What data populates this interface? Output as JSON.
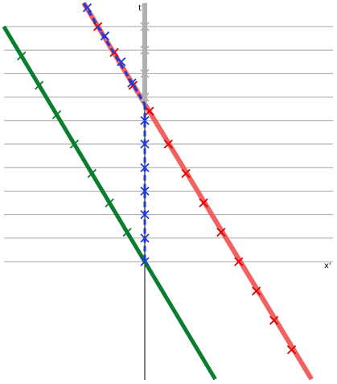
{
  "diagram": {
    "type": "spacetime-diagram",
    "axes": {
      "time_label": "t'",
      "space_label": "x'"
    },
    "units_per_grid": 1,
    "x_range": [
      -6,
      7.5
    ],
    "t_range": [
      -5,
      11
    ],
    "simultaneity_lines": [
      0,
      1,
      2,
      3,
      4,
      5,
      6,
      7,
      8,
      9,
      10
    ],
    "colors": {
      "grid": "#a6a6a6",
      "axis": "#000000",
      "green": "#0a7d2e",
      "red": "#f26060",
      "red_ticks": "#e00000",
      "blue": "#1a3bd6",
      "gray_worldline": "#b0b0b0"
    },
    "worldlines": [
      {
        "id": "green",
        "points": [
          [
            -6,
            10
          ],
          [
            3,
            -5
          ]
        ],
        "ticks": [
          [
            -5.25,
            8.75
          ],
          [
            -4.5,
            7.5
          ],
          [
            -3.75,
            6.25
          ],
          [
            -3,
            5
          ],
          [
            -2.25,
            3.75
          ],
          [
            -1.5,
            2.5
          ],
          [
            -0.75,
            1.25
          ]
        ]
      },
      {
        "id": "red",
        "points": [
          [
            -2.6,
            11
          ],
          [
            7.1,
            -5
          ]
        ],
        "ticks": [
          [
            -2,
            10
          ],
          [
            -1.3,
            8.9
          ],
          [
            -0.5,
            7.5
          ],
          [
            0.2,
            6.4
          ],
          [
            1,
            5
          ],
          [
            1.75,
            3.75
          ],
          [
            2.5,
            2.5
          ],
          [
            3.25,
            1.25
          ],
          [
            4,
            0
          ],
          [
            4.75,
            -1.25
          ],
          [
            5.5,
            -2.5
          ],
          [
            6.25,
            -3.75
          ]
        ]
      },
      {
        "id": "gray",
        "points": [
          [
            0,
            11
          ],
          [
            0,
            6.7
          ]
        ],
        "ticks": [
          [
            0,
            10
          ],
          [
            0,
            9
          ],
          [
            0,
            8
          ],
          [
            0,
            7
          ]
        ]
      },
      {
        "id": "blue-outbound",
        "points": [
          [
            -2.6,
            11
          ],
          [
            0,
            6.7
          ]
        ],
        "ticks": [
          [
            -2.45,
            10.8
          ],
          [
            -1.7,
            9.6
          ],
          [
            -1,
            8.5
          ],
          [
            -0.55,
            7.6
          ]
        ]
      },
      {
        "id": "blue-inbound",
        "points": [
          [
            0,
            6.7
          ],
          [
            0,
            0
          ]
        ],
        "ticks": [
          [
            0,
            6
          ],
          [
            0,
            5
          ],
          [
            0,
            4
          ],
          [
            0,
            3
          ],
          [
            0,
            2
          ],
          [
            0,
            1
          ],
          [
            0,
            0
          ]
        ]
      }
    ]
  }
}
